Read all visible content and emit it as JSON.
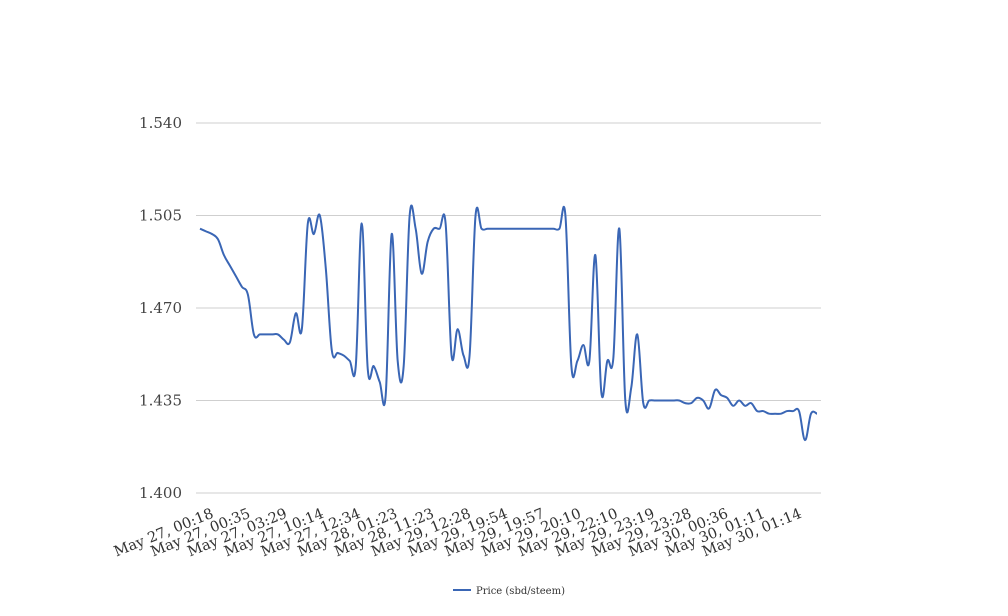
{
  "chart_data": {
    "type": "line",
    "title": "",
    "xlabel": "",
    "ylabel": "",
    "ylim": [
      1.4,
      1.54
    ],
    "yticks": [
      "1.400",
      "1.435",
      "1.470",
      "1.505",
      "1.540"
    ],
    "xtick_labels": [
      "May 27, 00:18",
      "May 27, 00:35",
      "May 27, 03:29",
      "May 27, 10:14",
      "May 27, 12:34",
      "May 28, 01:23",
      "May 28, 11:23",
      "May 29, 12:28",
      "May 29, 19:54",
      "May 29, 19:57",
      "May 29, 20:10",
      "May 29, 22:10",
      "May 29, 23:19",
      "May 29, 23:28",
      "May 30, 00:36",
      "May 30, 01:11",
      "May 30, 01:14"
    ],
    "grid": true,
    "legend": {
      "position": "bottom-center"
    },
    "series": [
      {
        "name": "Price (sbd/steem)",
        "color": "#3a66b5",
        "values": [
          1.5,
          1.499,
          1.498,
          1.496,
          1.49,
          1.486,
          1.482,
          1.478,
          1.475,
          1.46,
          1.46,
          1.46,
          1.46,
          1.46,
          1.458,
          1.457,
          1.468,
          1.462,
          1.502,
          1.498,
          1.505,
          1.485,
          1.454,
          1.453,
          1.452,
          1.45,
          1.448,
          1.502,
          1.447,
          1.448,
          1.442,
          1.437,
          1.498,
          1.45,
          1.448,
          1.505,
          1.5,
          1.483,
          1.495,
          1.5,
          1.5,
          1.502,
          1.452,
          1.462,
          1.452,
          1.452,
          1.505,
          1.5,
          1.5,
          1.5,
          1.5,
          1.5,
          1.5,
          1.5,
          1.5,
          1.5,
          1.5,
          1.5,
          1.5,
          1.5,
          1.5,
          1.505,
          1.448,
          1.45,
          1.456,
          1.45,
          1.49,
          1.438,
          1.45,
          1.451,
          1.5,
          1.435,
          1.44,
          1.46,
          1.434,
          1.435,
          1.435,
          1.435,
          1.435,
          1.435,
          1.435,
          1.434,
          1.434,
          1.436,
          1.435,
          1.432,
          1.439,
          1.437,
          1.436,
          1.433,
          1.435,
          1.433,
          1.434,
          1.431,
          1.431,
          1.43,
          1.43,
          1.43,
          1.431,
          1.431,
          1.431,
          1.42,
          1.43,
          1.43
        ]
      }
    ]
  }
}
